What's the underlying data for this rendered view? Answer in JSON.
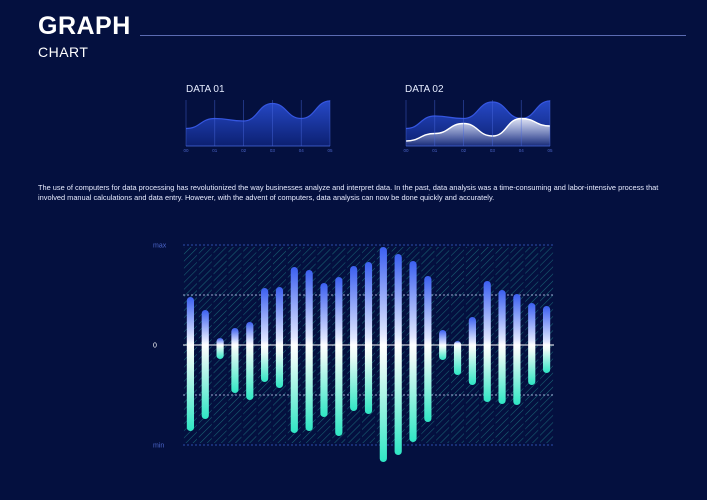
{
  "header": {
    "title": "GRAPH",
    "subtitle": "CHART"
  },
  "paragraph": "The use of computers for data processing has revolutionized the way businesses analyze and interpret data. In the past, data analysis was a time-consuming and labor-intensive process that involved manual calculations and data entry. However, with the advent of computers, data analysis can now be done quickly and accurately.",
  "colors": {
    "background": "#04103f",
    "bar_top": "#3b5ff0",
    "bar_mid": "#ffffff",
    "bar_bottom": "#2ee6c4",
    "area_fill": "#1c3fa0",
    "area_line": "#3556e0",
    "grid_line": "#3a5fd0"
  },
  "chart_data": [
    {
      "type": "area",
      "title": "DATA 01",
      "categories": [
        "00",
        "01",
        "02",
        "03",
        "04",
        "05"
      ],
      "series": [
        {
          "values": [
            0.35,
            0.55,
            0.5,
            0.85,
            0.55,
            0.9
          ]
        }
      ]
    },
    {
      "type": "area",
      "title": "DATA 02",
      "categories": [
        "00",
        "01",
        "02",
        "03",
        "04",
        "05"
      ],
      "series": [
        {
          "values": [
            0.35,
            0.6,
            0.55,
            0.88,
            0.55,
            0.9
          ]
        },
        {
          "values": [
            0.1,
            0.25,
            0.45,
            0.2,
            0.55,
            0.4
          ]
        }
      ]
    },
    {
      "type": "bar",
      "y_tick_labels": {
        "max": "max",
        "zero": "0",
        "min": "min"
      },
      "ylim": [
        -1,
        1
      ],
      "grid_levels": [
        1,
        0.5,
        0,
        -0.5,
        -1
      ],
      "values": [
        {
          "high": 0.48,
          "low": -0.86
        },
        {
          "high": 0.35,
          "low": -0.74
        },
        {
          "high": 0.07,
          "low": -0.14
        },
        {
          "high": 0.17,
          "low": -0.48
        },
        {
          "high": 0.23,
          "low": -0.55
        },
        {
          "high": 0.57,
          "low": -0.37
        },
        {
          "high": 0.58,
          "low": -0.43
        },
        {
          "high": 0.78,
          "low": -0.88
        },
        {
          "high": 0.75,
          "low": -0.86
        },
        {
          "high": 0.62,
          "low": -0.72
        },
        {
          "high": 0.68,
          "low": -0.91
        },
        {
          "high": 0.79,
          "low": -0.66
        },
        {
          "high": 0.83,
          "low": -0.69
        },
        {
          "high": 0.98,
          "low": -1.17
        },
        {
          "high": 0.91,
          "low": -1.1
        },
        {
          "high": 0.84,
          "low": -0.97
        },
        {
          "high": 0.69,
          "low": -0.77
        },
        {
          "high": 0.15,
          "low": -0.15
        },
        {
          "high": 0.04,
          "low": -0.3
        },
        {
          "high": 0.28,
          "low": -0.4
        },
        {
          "high": 0.64,
          "low": -0.57
        },
        {
          "high": 0.55,
          "low": -0.59
        },
        {
          "high": 0.51,
          "low": -0.6
        },
        {
          "high": 0.42,
          "low": -0.4
        },
        {
          "high": 0.39,
          "low": -0.28
        }
      ]
    }
  ]
}
